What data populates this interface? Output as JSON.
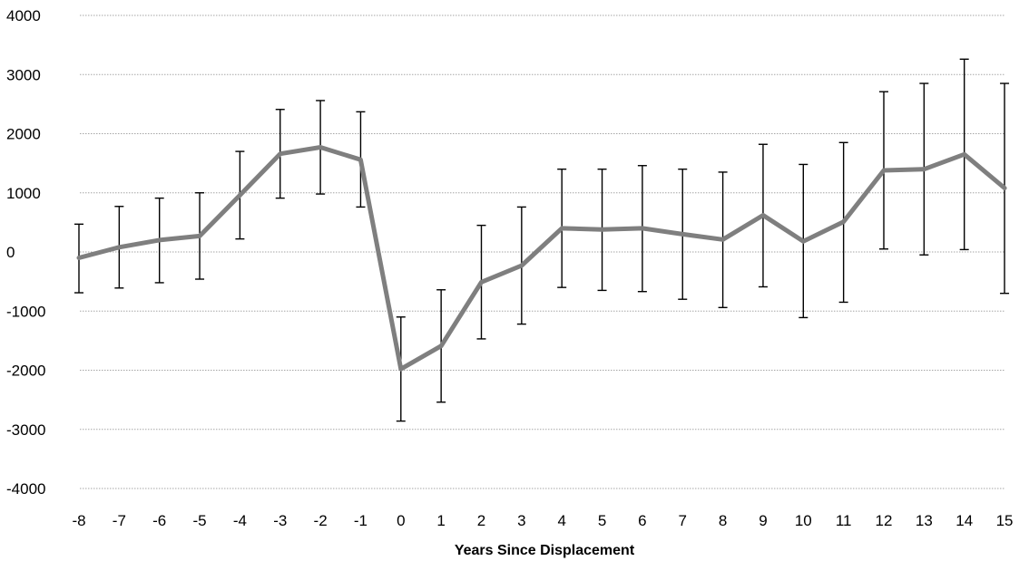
{
  "chart_data": {
    "type": "line",
    "title": "",
    "xlabel": "Years Since Displacement",
    "ylabel": "",
    "ylim": [
      -4000,
      4000
    ],
    "yticks": [
      4000,
      3000,
      2000,
      1000,
      0,
      -1000,
      -2000,
      -3000,
      -4000
    ],
    "x": [
      -8,
      -7,
      -6,
      -5,
      -4,
      -3,
      -2,
      -1,
      0,
      1,
      2,
      3,
      4,
      5,
      6,
      7,
      8,
      9,
      10,
      11,
      12,
      13,
      14,
      15
    ],
    "series": [
      {
        "name": "",
        "color": "#7f7f7f",
        "values": [
          -100,
          80,
          200,
          270,
          960,
          1660,
          1770,
          1560,
          -1980,
          -1590,
          -510,
          -230,
          400,
          380,
          400,
          300,
          210,
          620,
          180,
          510,
          1380,
          1400,
          1650,
          1080
        ],
        "error_low": [
          -690,
          -610,
          -520,
          -460,
          220,
          910,
          980,
          760,
          -2860,
          -2540,
          -1470,
          -1220,
          -600,
          -650,
          -670,
          -800,
          -940,
          -590,
          -1110,
          -850,
          50,
          -50,
          40,
          -700
        ],
        "error_high": [
          470,
          770,
          910,
          1000,
          1700,
          2410,
          2560,
          2370,
          -1100,
          -640,
          450,
          760,
          1400,
          1400,
          1460,
          1400,
          1350,
          1820,
          1480,
          1850,
          2710,
          2850,
          3260,
          2850
        ]
      }
    ],
    "grid": true,
    "grid_color": "#a6a6a6",
    "error_bar_color": "#000000",
    "legend": "none"
  }
}
